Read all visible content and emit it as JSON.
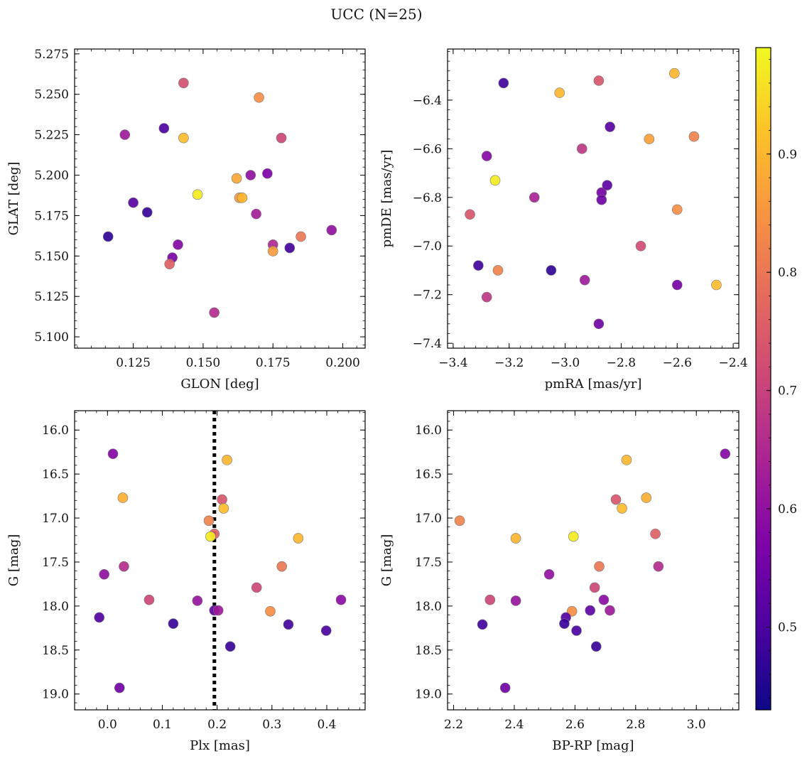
{
  "figure": {
    "title": "UCC (N=25)",
    "colorbar": {
      "colormap": "plasma",
      "range": [
        0.43,
        0.99
      ],
      "ticks": [
        0.5,
        0.6,
        0.7,
        0.8,
        0.9
      ],
      "tick_labels": [
        "0.5",
        "0.6",
        "0.7",
        "0.8",
        "0.9"
      ]
    }
  },
  "chart_data": [
    {
      "type": "scatter",
      "id": "glon-glat",
      "xlabel": "GLON [deg]",
      "ylabel": "GLAT [deg]",
      "xlim": [
        0.104,
        0.208
      ],
      "ylim": [
        5.093,
        5.278
      ],
      "y_inverted": false,
      "xticks": [
        0.125,
        0.15,
        0.175,
        0.2
      ],
      "xtick_labels": [
        "0.125",
        "0.150",
        "0.175",
        "0.200"
      ],
      "yticks": [
        5.1,
        5.125,
        5.15,
        5.175,
        5.2,
        5.225,
        5.25,
        5.275
      ],
      "ytick_labels": [
        "5.100",
        "5.125",
        "5.150",
        "5.175",
        "5.200",
        "5.225",
        "5.250",
        "5.275"
      ],
      "points": [
        {
          "x": 0.143,
          "y": 5.257,
          "c": 0.73
        },
        {
          "x": 0.17,
          "y": 5.248,
          "c": 0.84
        },
        {
          "x": 0.122,
          "y": 5.225,
          "c": 0.62
        },
        {
          "x": 0.136,
          "y": 5.229,
          "c": 0.5
        },
        {
          "x": 0.143,
          "y": 5.223,
          "c": 0.91
        },
        {
          "x": 0.178,
          "y": 5.223,
          "c": 0.71
        },
        {
          "x": 0.162,
          "y": 5.198,
          "c": 0.88
        },
        {
          "x": 0.167,
          "y": 5.2,
          "c": 0.6
        },
        {
          "x": 0.173,
          "y": 5.201,
          "c": 0.57
        },
        {
          "x": 0.148,
          "y": 5.188,
          "c": 0.97
        },
        {
          "x": 0.163,
          "y": 5.186,
          "c": 0.86
        },
        {
          "x": 0.164,
          "y": 5.186,
          "c": 0.9
        },
        {
          "x": 0.125,
          "y": 5.183,
          "c": 0.52
        },
        {
          "x": 0.13,
          "y": 5.177,
          "c": 0.48
        },
        {
          "x": 0.169,
          "y": 5.176,
          "c": 0.63
        },
        {
          "x": 0.116,
          "y": 5.162,
          "c": 0.47
        },
        {
          "x": 0.141,
          "y": 5.157,
          "c": 0.58
        },
        {
          "x": 0.175,
          "y": 5.157,
          "c": 0.65
        },
        {
          "x": 0.185,
          "y": 5.162,
          "c": 0.8
        },
        {
          "x": 0.196,
          "y": 5.166,
          "c": 0.6
        },
        {
          "x": 0.139,
          "y": 5.149,
          "c": 0.56
        },
        {
          "x": 0.138,
          "y": 5.145,
          "c": 0.76
        },
        {
          "x": 0.175,
          "y": 5.153,
          "c": 0.86
        },
        {
          "x": 0.181,
          "y": 5.155,
          "c": 0.49
        },
        {
          "x": 0.154,
          "y": 5.115,
          "c": 0.66
        }
      ]
    },
    {
      "type": "scatter",
      "id": "pmra-pmde",
      "xlabel": "pmRA [mas/yr]",
      "ylabel": "pmDE [mas/yr]",
      "xlim": [
        -3.42,
        -2.38
      ],
      "ylim": [
        -7.42,
        -6.19
      ],
      "y_inverted": false,
      "xticks": [
        -3.4,
        -3.2,
        -3.0,
        -2.8,
        -2.6,
        -2.4
      ],
      "xtick_labels": [
        "−3.4",
        "−3.2",
        "−3.0",
        "−2.8",
        "−2.6",
        "−2.4"
      ],
      "yticks": [
        -7.4,
        -7.2,
        -7.0,
        -6.8,
        -6.6,
        -6.4
      ],
      "ytick_labels": [
        "−7.4",
        "−7.2",
        "−7.0",
        "−6.8",
        "−6.6",
        "−6.4"
      ],
      "points": [
        {
          "x": -3.22,
          "y": -6.33,
          "c": 0.49
        },
        {
          "x": -3.02,
          "y": -6.37,
          "c": 0.9
        },
        {
          "x": -2.88,
          "y": -6.32,
          "c": 0.74
        },
        {
          "x": -2.61,
          "y": -6.29,
          "c": 0.9
        },
        {
          "x": -2.84,
          "y": -6.51,
          "c": 0.52
        },
        {
          "x": -2.7,
          "y": -6.56,
          "c": 0.87
        },
        {
          "x": -2.54,
          "y": -6.55,
          "c": 0.82
        },
        {
          "x": -3.28,
          "y": -6.63,
          "c": 0.58
        },
        {
          "x": -2.94,
          "y": -6.6,
          "c": 0.68
        },
        {
          "x": -3.25,
          "y": -6.73,
          "c": 0.97
        },
        {
          "x": -3.11,
          "y": -6.8,
          "c": 0.64
        },
        {
          "x": -2.87,
          "y": -6.78,
          "c": 0.56
        },
        {
          "x": -2.85,
          "y": -6.75,
          "c": 0.53
        },
        {
          "x": -2.87,
          "y": -6.81,
          "c": 0.55
        },
        {
          "x": -3.34,
          "y": -6.87,
          "c": 0.74
        },
        {
          "x": -2.6,
          "y": -6.85,
          "c": 0.84
        },
        {
          "x": -2.73,
          "y": -7.0,
          "c": 0.72
        },
        {
          "x": -3.31,
          "y": -7.08,
          "c": 0.49
        },
        {
          "x": -3.24,
          "y": -7.1,
          "c": 0.82
        },
        {
          "x": -3.05,
          "y": -7.1,
          "c": 0.47
        },
        {
          "x": -2.93,
          "y": -7.14,
          "c": 0.62
        },
        {
          "x": -2.6,
          "y": -7.16,
          "c": 0.56
        },
        {
          "x": -2.46,
          "y": -7.16,
          "c": 0.91
        },
        {
          "x": -3.28,
          "y": -7.21,
          "c": 0.68
        },
        {
          "x": -2.88,
          "y": -7.32,
          "c": 0.55
        }
      ]
    },
    {
      "type": "scatter",
      "id": "plx-g",
      "xlabel": "Plx [mas]",
      "ylabel": "G [mag]",
      "xlim": [
        -0.06,
        0.47
      ],
      "ylim": [
        15.78,
        19.18
      ],
      "y_inverted": true,
      "vline": {
        "x": 0.195
      },
      "xticks": [
        0.0,
        0.1,
        0.2,
        0.3,
        0.4
      ],
      "xtick_labels": [
        "0.0",
        "0.1",
        "0.2",
        "0.3",
        "0.4"
      ],
      "yticks": [
        16.0,
        16.5,
        17.0,
        17.5,
        18.0,
        18.5,
        19.0
      ],
      "ytick_labels": [
        "16.0",
        "16.5",
        "17.0",
        "17.5",
        "18.0",
        "18.5",
        "19.0"
      ],
      "points": [
        {
          "x": 0.01,
          "y": 16.27,
          "c": 0.58
        },
        {
          "x": 0.218,
          "y": 16.34,
          "c": 0.9
        },
        {
          "x": 0.028,
          "y": 16.77,
          "c": 0.89
        },
        {
          "x": 0.209,
          "y": 16.79,
          "c": 0.74
        },
        {
          "x": 0.212,
          "y": 16.89,
          "c": 0.91
        },
        {
          "x": 0.185,
          "y": 17.03,
          "c": 0.82
        },
        {
          "x": 0.195,
          "y": 17.18,
          "c": 0.76
        },
        {
          "x": 0.188,
          "y": 17.21,
          "c": 0.97
        },
        {
          "x": 0.348,
          "y": 17.23,
          "c": 0.9
        },
        {
          "x": 0.03,
          "y": 17.55,
          "c": 0.66
        },
        {
          "x": 0.318,
          "y": 17.55,
          "c": 0.8
        },
        {
          "x": -0.006,
          "y": 17.64,
          "c": 0.6
        },
        {
          "x": 0.272,
          "y": 17.79,
          "c": 0.71
        },
        {
          "x": 0.076,
          "y": 17.93,
          "c": 0.71
        },
        {
          "x": 0.164,
          "y": 17.94,
          "c": 0.61
        },
        {
          "x": 0.426,
          "y": 17.93,
          "c": 0.59
        },
        {
          "x": 0.195,
          "y": 18.05,
          "c": 0.53
        },
        {
          "x": 0.202,
          "y": 18.05,
          "c": 0.62
        },
        {
          "x": 0.297,
          "y": 18.06,
          "c": 0.84
        },
        {
          "x": -0.015,
          "y": 18.13,
          "c": 0.51
        },
        {
          "x": 0.12,
          "y": 18.2,
          "c": 0.48
        },
        {
          "x": 0.33,
          "y": 18.21,
          "c": 0.49
        },
        {
          "x": 0.399,
          "y": 18.28,
          "c": 0.5
        },
        {
          "x": 0.224,
          "y": 18.46,
          "c": 0.48
        },
        {
          "x": 0.022,
          "y": 18.93,
          "c": 0.55
        }
      ]
    },
    {
      "type": "scatter",
      "id": "bprp-g",
      "xlabel": "BP-RP [mag]",
      "ylabel": "G [mag]",
      "xlim": [
        2.18,
        3.14
      ],
      "ylim": [
        15.78,
        19.18
      ],
      "y_inverted": true,
      "xticks": [
        2.2,
        2.4,
        2.6,
        2.8,
        3.0
      ],
      "xtick_labels": [
        "2.2",
        "2.4",
        "2.6",
        "2.8",
        "3.0"
      ],
      "yticks": [
        16.0,
        16.5,
        17.0,
        17.5,
        18.0,
        18.5,
        19.0
      ],
      "ytick_labels": [
        "16.0",
        "16.5",
        "17.0",
        "17.5",
        "18.0",
        "18.5",
        "19.0"
      ],
      "points": [
        {
          "x": 3.095,
          "y": 16.27,
          "c": 0.58
        },
        {
          "x": 2.77,
          "y": 16.34,
          "c": 0.9
        },
        {
          "x": 2.835,
          "y": 16.77,
          "c": 0.89
        },
        {
          "x": 2.735,
          "y": 16.79,
          "c": 0.74
        },
        {
          "x": 2.755,
          "y": 16.89,
          "c": 0.91
        },
        {
          "x": 2.22,
          "y": 17.03,
          "c": 0.82
        },
        {
          "x": 2.865,
          "y": 17.18,
          "c": 0.76
        },
        {
          "x": 2.595,
          "y": 17.21,
          "c": 0.97
        },
        {
          "x": 2.405,
          "y": 17.23,
          "c": 0.9
        },
        {
          "x": 2.875,
          "y": 17.55,
          "c": 0.66
        },
        {
          "x": 2.68,
          "y": 17.55,
          "c": 0.8
        },
        {
          "x": 2.515,
          "y": 17.64,
          "c": 0.6
        },
        {
          "x": 2.665,
          "y": 17.79,
          "c": 0.71
        },
        {
          "x": 2.32,
          "y": 17.93,
          "c": 0.71
        },
        {
          "x": 2.405,
          "y": 17.94,
          "c": 0.61
        },
        {
          "x": 2.695,
          "y": 17.93,
          "c": 0.59
        },
        {
          "x": 2.65,
          "y": 18.05,
          "c": 0.53
        },
        {
          "x": 2.715,
          "y": 18.05,
          "c": 0.62
        },
        {
          "x": 2.59,
          "y": 18.06,
          "c": 0.84
        },
        {
          "x": 2.57,
          "y": 18.13,
          "c": 0.51
        },
        {
          "x": 2.565,
          "y": 18.2,
          "c": 0.48
        },
        {
          "x": 2.295,
          "y": 18.21,
          "c": 0.49
        },
        {
          "x": 2.605,
          "y": 18.28,
          "c": 0.5
        },
        {
          "x": 2.67,
          "y": 18.46,
          "c": 0.48
        },
        {
          "x": 2.37,
          "y": 18.93,
          "c": 0.55
        }
      ]
    }
  ]
}
